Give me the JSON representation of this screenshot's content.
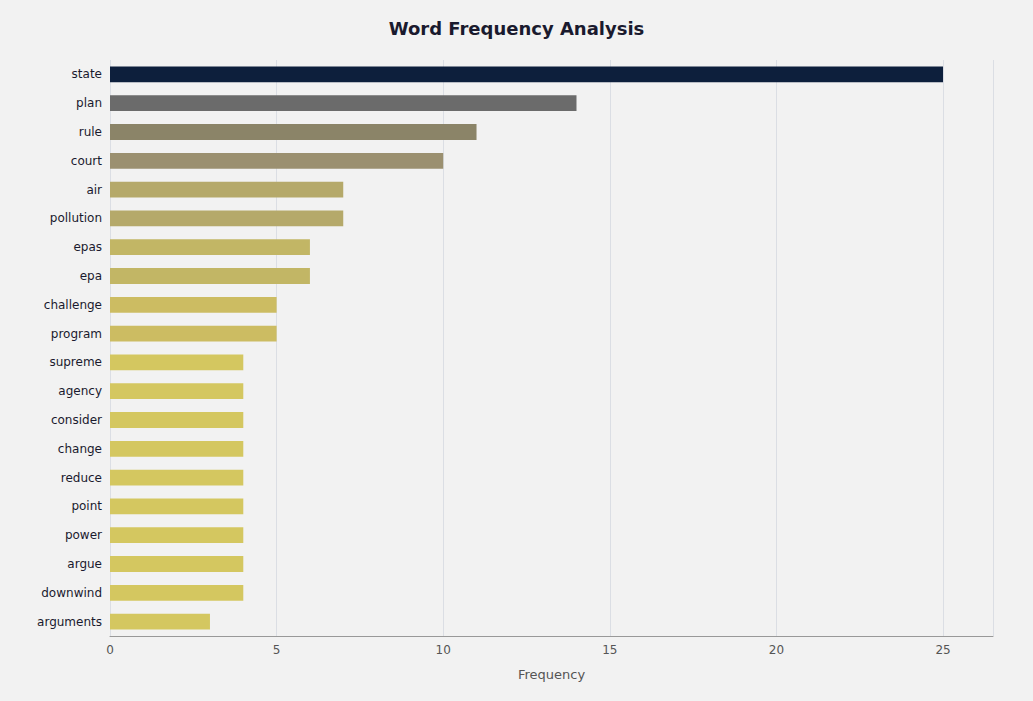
{
  "chart_data": {
    "type": "bar",
    "orientation": "horizontal",
    "title": "Word Frequency Analysis",
    "xlabel": "Frequency",
    "categories": [
      "state",
      "plan",
      "rule",
      "court",
      "air",
      "pollution",
      "epas",
      "epa",
      "challenge",
      "program",
      "supreme",
      "agency",
      "consider",
      "change",
      "reduce",
      "point",
      "power",
      "argue",
      "downwind",
      "arguments"
    ],
    "values": [
      25,
      14,
      11,
      10,
      7,
      7,
      6,
      6,
      5,
      5,
      4,
      4,
      4,
      4,
      4,
      4,
      4,
      4,
      4,
      3
    ],
    "colors": [
      "#0d1f3c",
      "#6b6b6b",
      "#8b8468",
      "#9b9070",
      "#b5a96a",
      "#b5a96a",
      "#c2b665",
      "#c2b665",
      "#ccbc62",
      "#ccbc62",
      "#d4c760",
      "#d4c760",
      "#d4c760",
      "#d4c760",
      "#d4c760",
      "#d4c760",
      "#d4c760",
      "#d4c760",
      "#d4c760",
      "#d4c760"
    ],
    "xlim": [
      0,
      26.5
    ],
    "xticks": [
      0,
      5,
      10,
      15,
      20,
      25
    ],
    "grid": true
  }
}
